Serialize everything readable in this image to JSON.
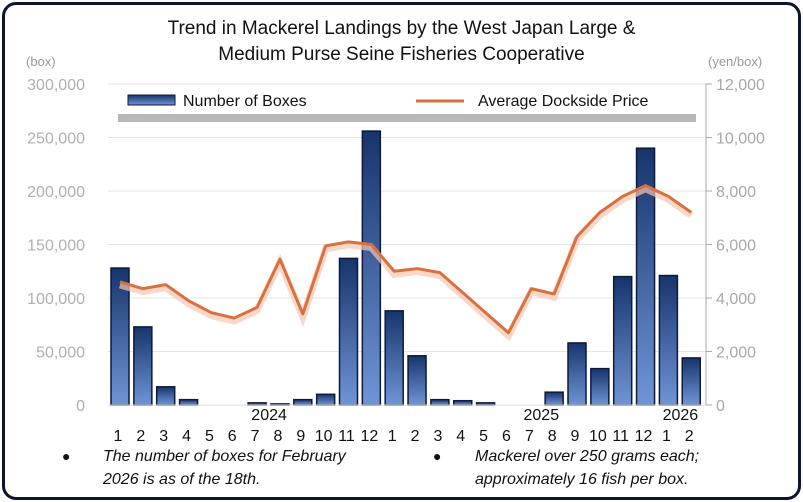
{
  "chart_data": {
    "type": "bar+line",
    "title": [
      "Trend in Mackerel Landings by the West Japan Large &",
      "Medium Purse Seine Fisheries Cooperative"
    ],
    "left_axis": {
      "label": "(box)",
      "range": [
        0,
        300000
      ],
      "ticks": [
        "0",
        "50,000",
        "100,000",
        "150,000",
        "200,000",
        "250,000",
        "300,000"
      ]
    },
    "right_axis": {
      "label": "(yen/box)",
      "range": [
        0,
        12000
      ],
      "ticks": [
        "0",
        "2,000",
        "4,000",
        "6,000",
        "8,000",
        "10,000",
        "12,000"
      ]
    },
    "categories": [
      "1",
      "2",
      "3",
      "4",
      "5",
      "6",
      "7",
      "8",
      "9",
      "10",
      "11",
      "12",
      "1",
      "2",
      "3",
      "4",
      "5",
      "6",
      "7",
      "8",
      "9",
      "10",
      "11",
      "12",
      "1",
      "2"
    ],
    "year_labels": [
      {
        "text": "2024",
        "index": 6
      },
      {
        "text": "2025",
        "index": 18
      },
      {
        "text": "2026",
        "index": 24
      }
    ],
    "legend": {
      "placement": "top",
      "entries": [
        "Number of Boxes",
        "Average Dockside Price"
      ]
    },
    "series": [
      {
        "name": "Number of Boxes",
        "type": "bar",
        "axis": "left",
        "color": "#2c4f8f",
        "values": [
          128000,
          73000,
          17000,
          5000,
          0,
          0,
          2000,
          1000,
          5000,
          10000,
          137000,
          256000,
          88000,
          46000,
          5000,
          4000,
          2000,
          0,
          0,
          12000,
          58000,
          34000,
          120000,
          240000,
          121000,
          44000
        ]
      },
      {
        "name": "Average Dockside Price",
        "type": "line",
        "axis": "right",
        "color": "#d9703f",
        "values": [
          4600,
          4350,
          4500,
          3900,
          3450,
          3250,
          3650,
          5450,
          3400,
          5950,
          6100,
          6000,
          5000,
          5100,
          4950,
          4200,
          3450,
          2700,
          4350,
          4150,
          6300,
          7200,
          7800,
          8200,
          7800,
          7200
        ]
      }
    ]
  },
  "notes": [
    "The number of boxes for February\n2026 is as of the 18th.",
    "Mackerel over 250 grams each;\napproximately 16 fish per box."
  ],
  "note_lines": [
    [
      "The number of boxes for February",
      "2026 is as of the 18th."
    ],
    [
      "Mackerel over 250 grams each;",
      "approximately 16 fish per box."
    ]
  ],
  "bullet": "●"
}
